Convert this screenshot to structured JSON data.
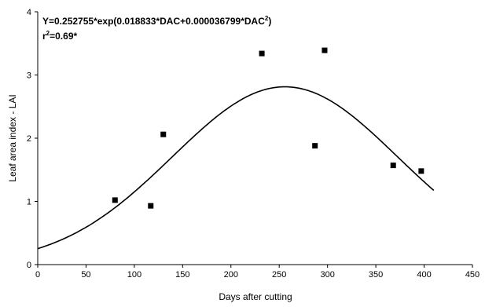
{
  "chart_data": {
    "type": "scatter",
    "title": "",
    "xlabel": "Days after cutting",
    "ylabel": "Leaf area index - LAI",
    "xlim": [
      0,
      450
    ],
    "ylim": [
      0,
      4
    ],
    "xticks": [
      "0",
      "50",
      "100",
      "150",
      "200",
      "250",
      "300",
      "350",
      "400",
      "450"
    ],
    "yticks": [
      "0",
      "1",
      "2",
      "3",
      "4"
    ],
    "grid": false,
    "legend": "none",
    "series": [
      {
        "kind": "points",
        "marker": "square",
        "color": "#000000",
        "x": [
          80,
          117,
          130,
          232,
          287,
          297,
          368,
          397
        ],
        "y": [
          1.02,
          0.93,
          2.06,
          3.34,
          1.88,
          3.39,
          1.57,
          1.48
        ]
      },
      {
        "kind": "fitted-curve",
        "color": "#000000",
        "formula": {
          "a": 0.252755,
          "b": 0.018833,
          "c": 3.6799e-05
        },
        "x_range": [
          0,
          410
        ]
      }
    ],
    "annotations": {
      "equation_main": "Y=0.252755*exp(0.018833*DAC+0.000036799*DAC",
      "equation_sup": "2",
      "equation_close": ")",
      "r2_prefix": "r",
      "r2_sup": "2",
      "r2_value": "=0.69*"
    }
  }
}
